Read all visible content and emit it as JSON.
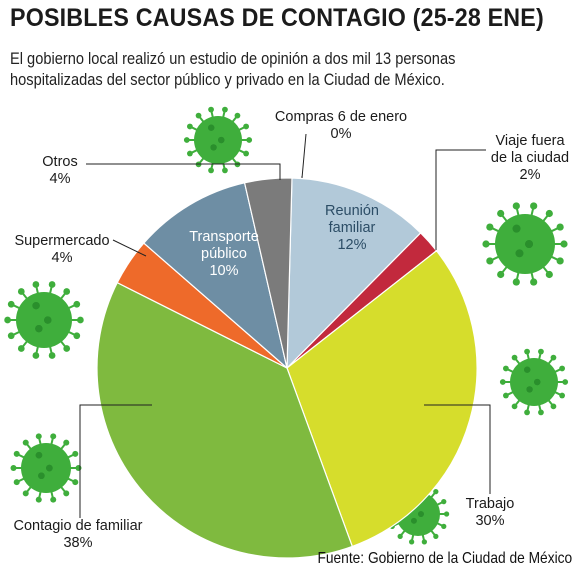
{
  "header": {
    "title": "POSIBLES CAUSAS DE CONTAGIO (25-28 ENE)",
    "subtitle_line1": "El gobierno local realizó un estudio de opinión a dos mil 13 personas",
    "subtitle_line2": "hospitalizadas del sector público y privado  en la Ciudad de México."
  },
  "footer": {
    "source": "Fuente: Gobierno de la Ciudad de México"
  },
  "decoration": {
    "virus_color": "#3fae3c",
    "virus_dark": "#2a8f2c"
  },
  "chart_data": {
    "type": "pie",
    "unit": "%",
    "slices": [
      {
        "label": "Compras 6 de enero",
        "label_lines": [
          "Compras 6 de enero"
        ],
        "value": 0,
        "display": "0%",
        "color": "#2f6b94"
      },
      {
        "label": "Reunión familiar",
        "label_lines": [
          "Reunión",
          "familiar"
        ],
        "value": 12,
        "display": "12%",
        "color": "#b2c9d9"
      },
      {
        "label": "Viaje fuera de la ciudad",
        "label_lines": [
          "Viaje fuera",
          "de la ciudad"
        ],
        "value": 2,
        "display": "2%",
        "color": "#c2293d"
      },
      {
        "label": "Trabajo",
        "label_lines": [
          "Trabajo"
        ],
        "value": 30,
        "display": "30%",
        "color": "#d6dd2c"
      },
      {
        "label": "Contagio de familiar",
        "label_lines": [
          "Contagio de familiar"
        ],
        "value": 38,
        "display": "38%",
        "color": "#7fba3f"
      },
      {
        "label": "Supermercado",
        "label_lines": [
          "Supermercado"
        ],
        "value": 4,
        "display": "4%",
        "color": "#ee6a2a"
      },
      {
        "label": "Transporte público",
        "label_lines": [
          "Transporte",
          "público"
        ],
        "value": 10,
        "display": "10%",
        "color": "#6e8ea4"
      },
      {
        "label": "Otros",
        "label_lines": [
          "Otros"
        ],
        "value": 4,
        "display": "4%",
        "color": "#7b7b7b"
      }
    ]
  }
}
